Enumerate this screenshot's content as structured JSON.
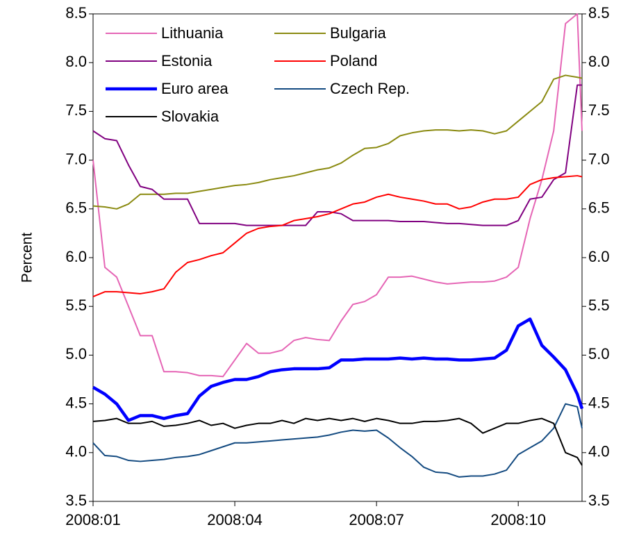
{
  "chart_data": {
    "type": "line",
    "y_label": "Percent",
    "x": [
      0,
      0.25,
      0.5,
      0.75,
      1,
      1.25,
      1.5,
      1.75,
      2,
      2.25,
      2.5,
      2.75,
      3,
      3.25,
      3.5,
      3.75,
      4,
      4.25,
      4.5,
      4.75,
      5,
      5.25,
      5.5,
      5.75,
      6,
      6.25,
      6.5,
      6.75,
      7,
      7.25,
      7.5,
      7.75,
      8,
      8.25,
      8.5,
      8.75,
      9,
      9.25,
      9.5,
      9.75,
      10,
      10.25,
      10.35
    ],
    "xlim": [
      0,
      10.35
    ],
    "xticks": [
      {
        "value": 0,
        "label": "2008:01"
      },
      {
        "value": 3,
        "label": "2008:04"
      },
      {
        "value": 6,
        "label": "2008:07"
      },
      {
        "value": 9,
        "label": "2008:10"
      }
    ],
    "ylim": [
      3.5,
      8.5
    ],
    "yticks": [
      {
        "value": 3.5,
        "label": "3.5"
      },
      {
        "value": 4,
        "label": "4.0"
      },
      {
        "value": 4.5,
        "label": "4.5"
      },
      {
        "value": 5,
        "label": "5.0"
      },
      {
        "value": 5.5,
        "label": "5.5"
      },
      {
        "value": 6,
        "label": "6.0"
      },
      {
        "value": 6.5,
        "label": "6.5"
      },
      {
        "value": 7,
        "label": "7.0"
      },
      {
        "value": 7.5,
        "label": "7.5"
      },
      {
        "value": 8,
        "label": "8.0"
      },
      {
        "value": 8.5,
        "label": "8.5"
      }
    ],
    "legend": "upper left",
    "series": [
      {
        "name": "Lithuania",
        "color": "#e565b5",
        "line_width": 2,
        "values": [
          7.0,
          5.9,
          5.8,
          5.5,
          5.2,
          5.2,
          4.83,
          4.83,
          4.82,
          4.79,
          4.79,
          4.78,
          4.95,
          5.12,
          5.02,
          5.02,
          5.05,
          5.15,
          5.18,
          5.16,
          5.15,
          5.35,
          5.52,
          5.55,
          5.62,
          5.8,
          5.8,
          5.81,
          5.78,
          5.75,
          5.73,
          5.74,
          5.75,
          5.75,
          5.76,
          5.8,
          5.9,
          6.4,
          6.8,
          7.3,
          8.4,
          8.5,
          7.3
        ]
      },
      {
        "name": "Bulgaria",
        "color": "#8a8a10",
        "line_width": 2,
        "values": [
          6.53,
          6.52,
          6.5,
          6.55,
          6.65,
          6.65,
          6.65,
          6.66,
          6.66,
          6.68,
          6.7,
          6.72,
          6.74,
          6.75,
          6.77,
          6.8,
          6.82,
          6.84,
          6.87,
          6.9,
          6.92,
          6.97,
          7.05,
          7.12,
          7.13,
          7.17,
          7.25,
          7.28,
          7.3,
          7.31,
          7.31,
          7.3,
          7.31,
          7.3,
          7.27,
          7.3,
          7.4,
          7.5,
          7.6,
          7.83,
          7.87,
          7.85,
          7.84
        ]
      },
      {
        "name": "Estonia",
        "color": "#800080",
        "line_width": 2,
        "values": [
          7.3,
          7.22,
          7.2,
          6.95,
          6.73,
          6.7,
          6.6,
          6.6,
          6.6,
          6.35,
          6.35,
          6.35,
          6.35,
          6.33,
          6.33,
          6.33,
          6.33,
          6.33,
          6.33,
          6.47,
          6.47,
          6.45,
          6.38,
          6.38,
          6.38,
          6.38,
          6.37,
          6.37,
          6.37,
          6.36,
          6.35,
          6.35,
          6.34,
          6.33,
          6.33,
          6.33,
          6.38,
          6.6,
          6.62,
          6.8,
          6.87,
          7.77,
          7.77
        ]
      },
      {
        "name": "Poland",
        "color": "#ff0000",
        "line_width": 2,
        "values": [
          5.6,
          5.65,
          5.65,
          5.64,
          5.63,
          5.65,
          5.68,
          5.85,
          5.95,
          5.98,
          6.02,
          6.05,
          6.15,
          6.25,
          6.3,
          6.32,
          6.33,
          6.38,
          6.4,
          6.42,
          6.45,
          6.5,
          6.55,
          6.57,
          6.62,
          6.65,
          6.62,
          6.6,
          6.58,
          6.55,
          6.55,
          6.5,
          6.52,
          6.57,
          6.6,
          6.6,
          6.62,
          6.75,
          6.8,
          6.82,
          6.83,
          6.84,
          6.83
        ]
      },
      {
        "name": "Euro area",
        "color": "#0000ff",
        "line_width": 4.5,
        "values": [
          4.67,
          4.6,
          4.5,
          4.33,
          4.38,
          4.38,
          4.35,
          4.38,
          4.4,
          4.58,
          4.68,
          4.72,
          4.75,
          4.75,
          4.78,
          4.83,
          4.85,
          4.86,
          4.86,
          4.86,
          4.87,
          4.95,
          4.95,
          4.96,
          4.96,
          4.96,
          4.97,
          4.96,
          4.97,
          4.96,
          4.96,
          4.95,
          4.95,
          4.96,
          4.97,
          5.05,
          5.3,
          5.37,
          5.1,
          4.98,
          4.85,
          4.6,
          4.45
        ]
      },
      {
        "name": "Czech Rep.",
        "color": "#134a80",
        "line_width": 2,
        "values": [
          4.1,
          3.97,
          3.96,
          3.92,
          3.91,
          3.92,
          3.93,
          3.95,
          3.96,
          3.98,
          4.02,
          4.06,
          4.1,
          4.1,
          4.11,
          4.12,
          4.13,
          4.14,
          4.15,
          4.16,
          4.18,
          4.21,
          4.23,
          4.22,
          4.23,
          4.15,
          4.05,
          3.96,
          3.85,
          3.8,
          3.79,
          3.75,
          3.76,
          3.76,
          3.78,
          3.82,
          3.98,
          4.05,
          4.12,
          4.25,
          4.5,
          4.47,
          4.25
        ]
      },
      {
        "name": "Slovakia",
        "color": "#000000",
        "line_width": 2,
        "values": [
          4.32,
          4.33,
          4.35,
          4.3,
          4.3,
          4.32,
          4.27,
          4.28,
          4.3,
          4.33,
          4.28,
          4.3,
          4.25,
          4.28,
          4.3,
          4.3,
          4.33,
          4.3,
          4.35,
          4.33,
          4.35,
          4.33,
          4.35,
          4.32,
          4.35,
          4.33,
          4.3,
          4.3,
          4.32,
          4.32,
          4.33,
          4.35,
          4.3,
          4.2,
          4.25,
          4.3,
          4.3,
          4.33,
          4.35,
          4.3,
          4.0,
          3.95,
          3.87
        ]
      }
    ]
  }
}
